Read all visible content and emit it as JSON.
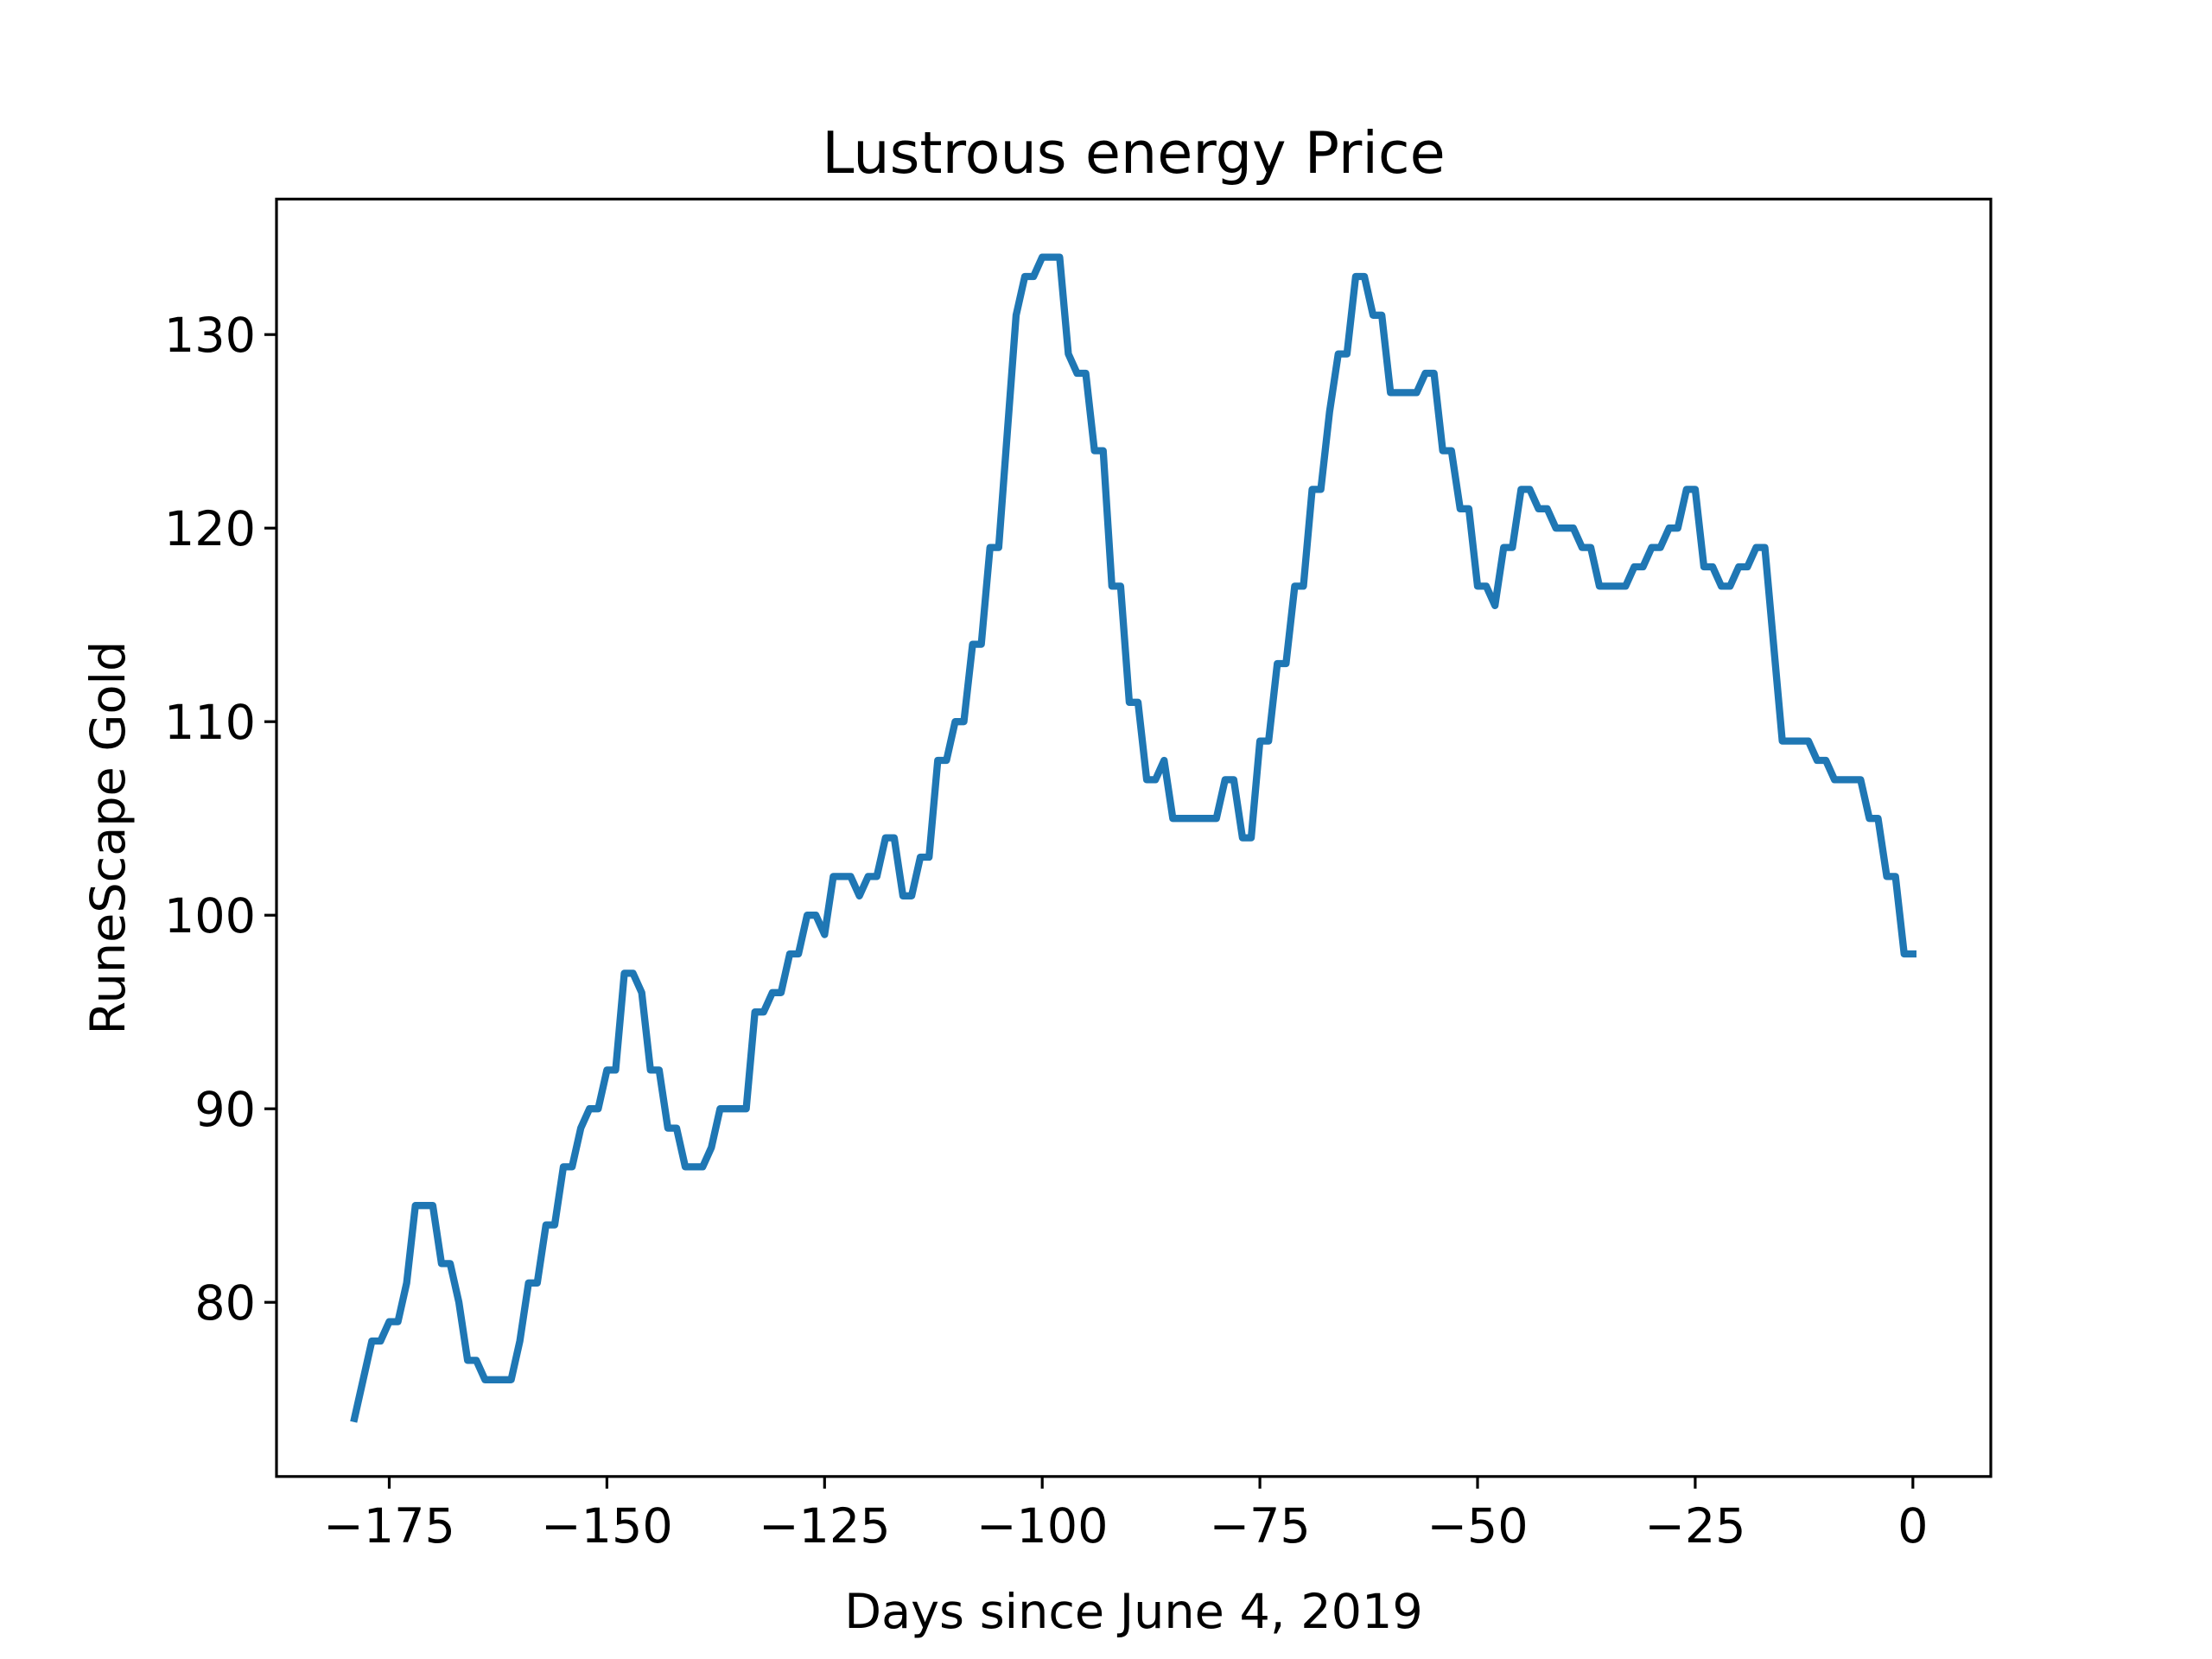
{
  "chart_data": {
    "type": "line",
    "title": "Lustrous energy Price",
    "xlabel": "Days since June 4, 2019",
    "ylabel": "RuneScape Gold",
    "x": [
      -179,
      -178,
      -177,
      -176,
      -175,
      -174,
      -173,
      -172,
      -171,
      -170,
      -169,
      -168,
      -167,
      -166,
      -165,
      -164,
      -163,
      -162,
      -161,
      -160,
      -159,
      -158,
      -157,
      -156,
      -155,
      -154,
      -153,
      -152,
      -151,
      -150,
      -149,
      -148,
      -147,
      -146,
      -145,
      -144,
      -143,
      -142,
      -141,
      -140,
      -139,
      -138,
      -137,
      -136,
      -135,
      -134,
      -133,
      -132,
      -131,
      -130,
      -129,
      -128,
      -127,
      -126,
      -125,
      -124,
      -123,
      -122,
      -121,
      -120,
      -119,
      -118,
      -117,
      -116,
      -115,
      -114,
      -113,
      -112,
      -111,
      -110,
      -109,
      -108,
      -107,
      -106,
      -105,
      -104,
      -103,
      -102,
      -101,
      -100,
      -99,
      -98,
      -97,
      -96,
      -95,
      -94,
      -93,
      -92,
      -91,
      -90,
      -89,
      -88,
      -87,
      -86,
      -85,
      -84,
      -83,
      -82,
      -81,
      -80,
      -79,
      -78,
      -77,
      -76,
      -75,
      -74,
      -73,
      -72,
      -71,
      -70,
      -69,
      -68,
      -67,
      -66,
      -65,
      -64,
      -63,
      -62,
      -61,
      -60,
      -59,
      -58,
      -57,
      -56,
      -55,
      -54,
      -53,
      -52,
      -51,
      -50,
      -49,
      -48,
      -47,
      -46,
      -45,
      -44,
      -43,
      -42,
      -41,
      -40,
      -39,
      -38,
      -37,
      -36,
      -35,
      -34,
      -33,
      -32,
      -31,
      -30,
      -29,
      -28,
      -27,
      -26,
      -25,
      -24,
      -23,
      -22,
      -21,
      -20,
      -19,
      -18,
      -17,
      -16,
      -15,
      -14,
      -13,
      -12,
      -11,
      -10,
      -9,
      -8,
      -7,
      -6,
      -5,
      -4,
      -3,
      -2,
      -1,
      0
    ],
    "series": [
      {
        "color": "#1f77b4",
        "values": [
          74,
          76,
          78,
          78,
          79,
          79,
          81,
          85,
          85,
          85,
          82,
          82,
          80,
          77,
          77,
          76,
          76,
          76,
          76,
          78,
          81,
          81,
          84,
          84,
          87,
          87,
          89,
          90,
          90,
          92,
          92,
          97,
          97,
          96,
          92,
          92,
          89,
          89,
          87,
          87,
          87,
          88,
          90,
          90,
          90,
          90,
          95,
          95,
          96,
          96,
          98,
          98,
          100,
          100,
          99,
          102,
          102,
          102,
          101,
          102,
          102,
          104,
          104,
          101,
          101,
          103,
          103,
          108,
          108,
          110,
          110,
          114,
          114,
          119,
          119,
          125,
          131,
          133,
          133,
          134,
          134,
          134,
          129,
          128,
          128,
          124,
          124,
          117,
          117,
          111,
          111,
          107,
          107,
          108,
          105,
          105,
          105,
          105,
          105,
          105,
          107,
          107,
          104,
          104,
          109,
          109,
          113,
          113,
          117,
          117,
          122,
          122,
          126,
          129,
          129,
          133,
          133,
          131,
          131,
          127,
          127,
          127,
          127,
          128,
          128,
          124,
          124,
          121,
          121,
          117,
          117,
          116,
          119,
          119,
          122,
          122,
          121,
          121,
          120,
          120,
          120,
          119,
          119,
          117,
          117,
          117,
          117,
          118,
          118,
          119,
          119,
          120,
          120,
          122,
          122,
          118,
          118,
          117,
          117,
          118,
          118,
          119,
          119,
          114,
          109,
          109,
          109,
          109,
          108,
          108,
          107,
          107,
          107,
          107,
          105,
          105,
          102,
          102,
          98,
          98
        ]
      }
    ],
    "xlim": [
      -187.95,
      8.95
    ],
    "ylim": [
      71,
      137
    ],
    "xticks": [
      {
        "value": -175,
        "label": "−175"
      },
      {
        "value": -150,
        "label": "−150"
      },
      {
        "value": -125,
        "label": "−125"
      },
      {
        "value": -100,
        "label": "−100"
      },
      {
        "value": -75,
        "label": "−75"
      },
      {
        "value": -50,
        "label": "−50"
      },
      {
        "value": -25,
        "label": "−25"
      },
      0
    ],
    "yticks": [
      80,
      90,
      100,
      110,
      120,
      130
    ],
    "grid": false
  }
}
